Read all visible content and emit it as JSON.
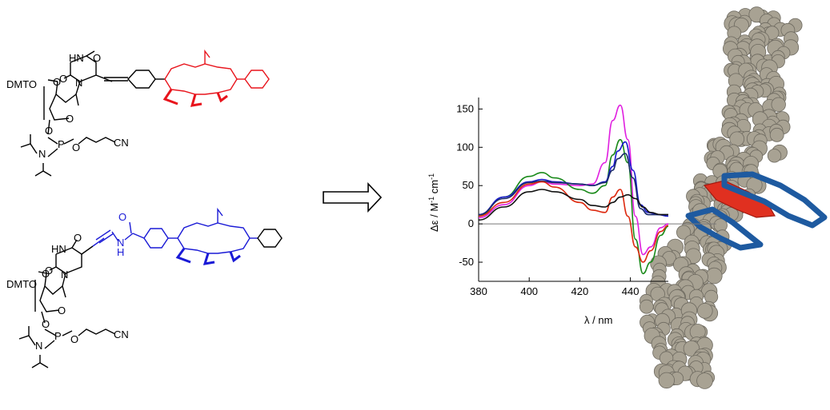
{
  "molecule_top": {
    "labels": {
      "hn": "HN",
      "o_carbonyl_top": "O",
      "o_carbonyl_side": "O",
      "n_ring": "N",
      "dmto": "DMTO",
      "o_furanose": "O",
      "o_bridge": "O",
      "o_phosphite": "O",
      "p": "P",
      "n_amine": "N",
      "o_ester": "O",
      "cn": "CN"
    },
    "color": "#e8141c"
  },
  "molecule_bottom": {
    "labels": {
      "o_amide": "O",
      "n_amide": "N",
      "h_amide": "H",
      "hn": "HN",
      "o_carbonyl_top": "O",
      "o_carbonyl_side": "O",
      "n_ring": "N",
      "dmto": "DMTO",
      "o_furanose": "O",
      "o_bridge": "O",
      "o_phosphite": "O",
      "p": "P",
      "n_amine": "N",
      "o_ester": "O",
      "cn": "CN"
    },
    "color": "#1a1ad6"
  },
  "arrow": {
    "name": "reaction-arrow"
  },
  "chart_data": {
    "type": "line",
    "title": "",
    "xlabel": "λ / nm",
    "ylabel_parts": {
      "main": "Δε / M",
      "sup1": "-1",
      "mid": " cm",
      "sup2": "-1"
    },
    "xlim": [
      380,
      455
    ],
    "ylim": [
      -75,
      165
    ],
    "xticks": [
      380,
      400,
      420,
      440
    ],
    "yticks": [
      -50,
      0,
      50,
      100,
      150
    ],
    "series": [
      {
        "name": "magenta",
        "color": "#e020e0",
        "x": [
          380,
          390,
          400,
          405,
          410,
          420,
          425,
          430,
          433,
          436,
          439,
          442,
          445,
          448,
          452,
          455
        ],
        "y": [
          8,
          25,
          50,
          55,
          52,
          50,
          52,
          80,
          135,
          155,
          110,
          10,
          -40,
          -30,
          -5,
          0
        ]
      },
      {
        "name": "green",
        "color": "#1a8a1a",
        "x": [
          380,
          390,
          400,
          405,
          410,
          420,
          425,
          430,
          433,
          436,
          439,
          442,
          445,
          448,
          452,
          455
        ],
        "y": [
          10,
          35,
          62,
          67,
          60,
          45,
          40,
          50,
          90,
          110,
          80,
          -20,
          -65,
          -50,
          -15,
          -3
        ]
      },
      {
        "name": "blue",
        "color": "#1a1acc",
        "x": [
          380,
          390,
          400,
          405,
          410,
          420,
          425,
          430,
          433,
          435,
          438,
          441,
          444,
          447,
          451,
          455
        ],
        "y": [
          12,
          35,
          55,
          58,
          55,
          52,
          50,
          55,
          75,
          95,
          107,
          70,
          25,
          15,
          12,
          10
        ]
      },
      {
        "name": "navy",
        "color": "#1a2a6a",
        "x": [
          380,
          390,
          400,
          405,
          410,
          420,
          425,
          430,
          433,
          435,
          438,
          441,
          444,
          447,
          451,
          455
        ],
        "y": [
          12,
          33,
          54,
          56,
          54,
          52,
          50,
          54,
          70,
          85,
          92,
          60,
          20,
          12,
          12,
          12
        ]
      },
      {
        "name": "red",
        "color": "#dd2a10",
        "x": [
          380,
          390,
          400,
          405,
          410,
          420,
          425,
          430,
          433,
          436,
          439,
          442,
          445,
          448,
          452,
          455
        ],
        "y": [
          10,
          28,
          52,
          55,
          48,
          28,
          18,
          15,
          35,
          45,
          10,
          -30,
          -50,
          -35,
          -10,
          -2
        ]
      },
      {
        "name": "black",
        "color": "#111111",
        "x": [
          380,
          390,
          400,
          405,
          410,
          420,
          425,
          430,
          433,
          436,
          439,
          442,
          445,
          448,
          452,
          455
        ],
        "y": [
          5,
          22,
          42,
          45,
          42,
          32,
          24,
          22,
          28,
          35,
          38,
          33,
          22,
          15,
          12,
          12
        ]
      }
    ]
  }
}
